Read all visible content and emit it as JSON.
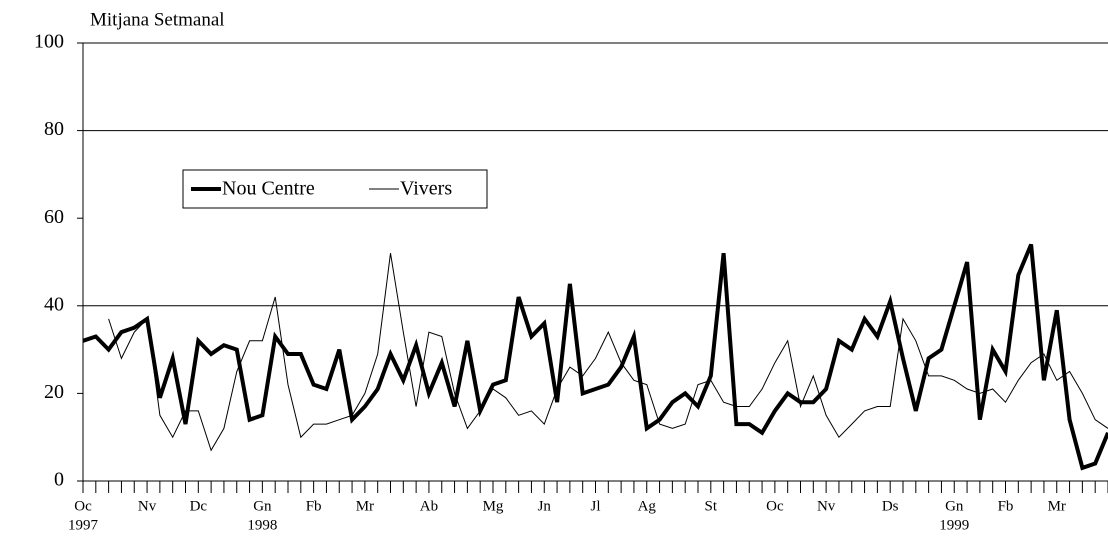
{
  "chart_data": {
    "type": "line",
    "title": "Mitjana Setmanal",
    "categories": [
      "Oc",
      null,
      null,
      null,
      null,
      "Nv",
      null,
      null,
      null,
      "Dc",
      null,
      null,
      null,
      null,
      "Gn",
      null,
      null,
      null,
      "Fb",
      null,
      null,
      null,
      "Mr",
      null,
      null,
      null,
      null,
      "Ab",
      null,
      null,
      null,
      null,
      "Mg",
      null,
      null,
      null,
      "Jn",
      null,
      null,
      null,
      "Jl",
      null,
      null,
      null,
      "Ag",
      null,
      null,
      null,
      null,
      "St",
      null,
      null,
      null,
      null,
      "Oc",
      null,
      null,
      null,
      "Nv",
      null,
      null,
      null,
      null,
      "Ds",
      null,
      null,
      null,
      null,
      "Gn",
      null,
      null,
      null,
      "Fb",
      null,
      null,
      null,
      "Mr",
      null,
      null,
      null,
      null
    ],
    "years": [
      "1997",
      null,
      null,
      null,
      null,
      null,
      null,
      null,
      null,
      null,
      null,
      null,
      null,
      null,
      "1998",
      null,
      null,
      null,
      null,
      null,
      null,
      null,
      null,
      null,
      null,
      null,
      null,
      null,
      null,
      null,
      null,
      null,
      null,
      null,
      null,
      null,
      null,
      null,
      null,
      null,
      null,
      null,
      null,
      null,
      null,
      null,
      null,
      null,
      null,
      null,
      null,
      null,
      null,
      null,
      null,
      null,
      null,
      null,
      null,
      null,
      null,
      null,
      null,
      null,
      null,
      null,
      null,
      null,
      "1999",
      null,
      null,
      null,
      null,
      null,
      null,
      null,
      null,
      null,
      null,
      null,
      null
    ],
    "series": [
      {
        "name": "Nou Centre",
        "color": "#000000",
        "width": 4,
        "values": [
          32,
          33,
          30,
          34,
          35,
          37,
          19,
          28,
          13,
          32,
          29,
          31,
          30,
          14,
          15,
          33,
          29,
          29,
          22,
          21,
          30,
          14,
          17,
          21,
          29,
          23,
          31,
          20,
          27,
          17,
          32,
          16,
          22,
          23,
          42,
          33,
          36,
          18,
          45,
          20,
          21,
          22,
          26,
          33,
          12,
          14,
          18,
          20,
          17,
          24,
          52,
          13,
          13,
          11,
          16,
          20,
          18,
          18,
          21,
          32,
          30,
          37,
          33,
          41,
          28,
          16,
          28,
          30,
          40,
          50,
          14,
          30,
          25,
          47,
          54,
          23,
          39,
          14,
          3,
          4,
          11
        ]
      },
      {
        "name": "Vivers",
        "color": "#000000",
        "width": 1,
        "values": [
          null,
          null,
          37,
          28,
          34,
          37,
          15,
          10,
          16,
          16,
          7,
          12,
          25,
          32,
          32,
          42,
          22,
          10,
          13,
          13,
          14,
          15,
          20,
          29,
          52,
          34,
          17,
          34,
          33,
          20,
          12,
          16,
          21,
          19,
          15,
          16,
          13,
          21,
          26,
          24,
          28,
          34,
          27,
          23,
          22,
          13,
          12,
          13,
          22,
          23,
          18,
          17,
          17,
          21,
          27,
          32,
          17,
          24,
          15,
          10,
          13,
          16,
          17,
          17,
          37,
          32,
          24,
          24,
          23,
          21,
          20,
          21,
          18,
          23,
          27,
          29,
          23,
          25,
          20,
          14,
          12
        ]
      }
    ],
    "ylim": [
      0,
      100
    ],
    "yticks": [
      0,
      20,
      40,
      60,
      80,
      100
    ],
    "grid_lines": [
      40,
      80,
      100
    ],
    "legend": "upper-left"
  }
}
